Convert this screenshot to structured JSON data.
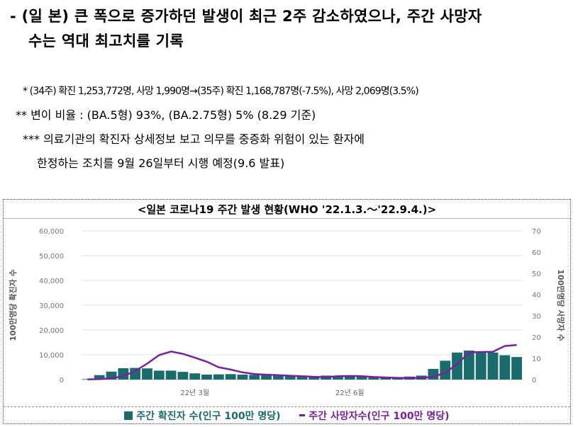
{
  "heading": {
    "line1": "- (일 본) 큰 폭으로 증가하던 발생이 최근 2주 감소하였으나, 주간 사망자",
    "line2": "수는 역대 최고치를 기록"
  },
  "notes": {
    "note1": "* (34주) 확진 1,253,772명, 사망 1,990명→(35주) 확진 1,168,787명(-7.5%), 사망 2,069명(3.5%)",
    "note2": "** 변이 비율 : (BA.5형) 93%, (BA.2.75형) 5% (8.29 기준)",
    "note3": "*** 의료기관의 확진자 상세정보 보고 의무를 중증화 위험이 있는 환자에",
    "note4": "한정하는 조치를 9월 26일부터 시행 예정(9.6 발표)"
  },
  "chart_data": {
    "type": "bar+line",
    "title": "<일본 코로나19 주간 발생 현황(WHO '22.1.3.～'22.9.4.)>",
    "ylabel_left": "100만명당 확진자 수",
    "ylabel_right": "100만명당 사망자 수",
    "ylim_left": [
      0,
      60000
    ],
    "ylim_right": [
      0,
      70
    ],
    "yticks_left": [
      "0",
      "10,000",
      "20,000",
      "30,000",
      "40,000",
      "50,000",
      "60,000"
    ],
    "yticks_right": [
      "0",
      "10",
      "20",
      "30",
      "40",
      "50",
      "60",
      "70"
    ],
    "x_tick_labels": [
      {
        "week": 9,
        "label": "22년 3월"
      },
      {
        "week": 22,
        "label": "22년 6월"
      }
    ],
    "grid": true,
    "legend_position": "bottom",
    "series": [
      {
        "name": "주간 확진자 수(인구 100만 명당)",
        "type": "bar",
        "axis": "left",
        "color": "#1a6b6b",
        "values": [
          200,
          1800,
          3200,
          4600,
          4700,
          4500,
          3600,
          3600,
          3100,
          2500,
          2000,
          2100,
          2200,
          2000,
          1900,
          1800,
          1700,
          1600,
          1500,
          1400,
          1600,
          1500,
          1300,
          1100,
          1000,
          900,
          900,
          1200,
          1600,
          4300,
          7600,
          10900,
          11700,
          11100,
          10900,
          9800,
          9100
        ]
      },
      {
        "name": "주간 사망자수(인구 100만 명당)",
        "type": "line",
        "axis": "right",
        "color": "#7a1fa2",
        "values": [
          0.1,
          0.2,
          0.6,
          1.6,
          4,
          7.5,
          11.5,
          13.2,
          12.1,
          10.3,
          8.4,
          5.8,
          4.7,
          3.4,
          2.6,
          2.3,
          2.1,
          1.8,
          1.6,
          1.3,
          1.1,
          1.6,
          1.7,
          1.6,
          1.2,
          1.0,
          0.8,
          0.7,
          0.8,
          1.3,
          3.2,
          7.2,
          12.8,
          13.0,
          13.1,
          15.8,
          16.3
        ]
      }
    ]
  }
}
